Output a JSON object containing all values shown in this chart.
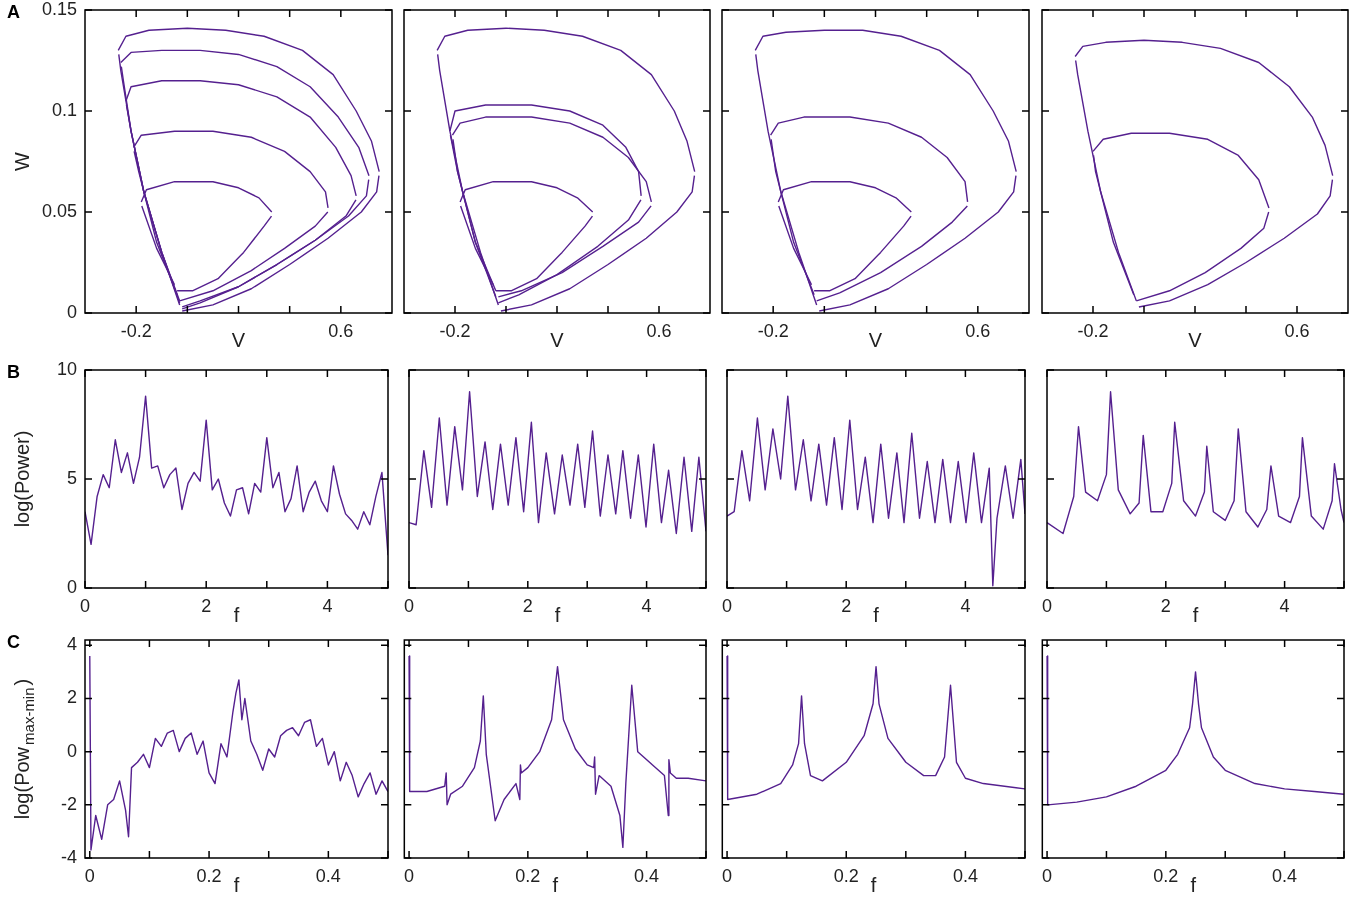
{
  "chart_data": [
    {
      "type": "line",
      "xlabel": "V",
      "ylabel": "W",
      "annotations": [
        "A"
      ],
      "marker": "none",
      "xlim": [
        -0.4,
        0.8
      ],
      "ylim": [
        0,
        0.15
      ],
      "xticks": [
        -0.2,
        {
          "value": 0,
          "label": null
        },
        {
          "value": 0.2,
          "label": null
        },
        {
          "value": 0.4,
          "label": null
        },
        0.6
      ],
      "yticks": [
        0,
        0.05,
        0.1,
        0.15
      ],
      "series": [
        {
          "color": "#55208f",
          "x": [
            -0.268,
            -0.26,
            -0.22,
            -0.17,
            -0.1,
            -0.03
          ],
          "values": [
            0.128,
            0.12,
            0.09,
            0.06,
            0.03,
            0.004
          ]
        },
        {
          "color": "#55208f",
          "x": [
            -0.27,
            -0.24,
            -0.15,
            0,
            0.15,
            0.3,
            0.45,
            0.57,
            0.66,
            0.72,
            0.75
          ],
          "values": [
            0.13,
            0.137,
            0.14,
            0.141,
            0.14,
            0.137,
            0.13,
            0.118,
            0.1,
            0.085,
            0.07
          ]
        },
        {
          "color": "#55208f",
          "x": [
            -0.02,
            0.1,
            0.25,
            0.4,
            0.55,
            0.68,
            0.74,
            0.749
          ],
          "values": [
            0.001,
            0.004,
            0.012,
            0.024,
            0.037,
            0.05,
            0.06,
            0.068
          ]
        },
        {
          "color": "#55208f",
          "x": [
            -0.258,
            -0.25,
            -0.22,
            -0.17,
            -0.1,
            -0.03
          ],
          "values": [
            0.122,
            0.115,
            0.09,
            0.06,
            0.03,
            0.005
          ]
        },
        {
          "color": "#55208f",
          "x": [
            -0.26,
            -0.22,
            -0.1,
            0.05,
            0.2,
            0.35,
            0.48,
            0.59,
            0.67,
            0.71
          ],
          "values": [
            0.124,
            0.129,
            0.13,
            0.13,
            0.128,
            0.122,
            0.112,
            0.097,
            0.082,
            0.068
          ]
        },
        {
          "color": "#55208f",
          "x": [
            -0.02,
            0.05,
            0.2,
            0.35,
            0.5,
            0.63,
            0.7,
            0.709
          ],
          "values": [
            0.002,
            0.005,
            0.013,
            0.024,
            0.036,
            0.048,
            0.058,
            0.066
          ]
        },
        {
          "color": "#55208f",
          "x": [
            -0.238,
            -0.22,
            -0.17,
            -0.1,
            -0.03
          ],
          "values": [
            0.103,
            0.09,
            0.06,
            0.03,
            0.006
          ]
        },
        {
          "color": "#55208f",
          "x": [
            -0.24,
            -0.22,
            -0.1,
            0.05,
            0.2,
            0.35,
            0.48,
            0.58,
            0.64,
            0.66
          ],
          "values": [
            0.105,
            0.112,
            0.115,
            0.115,
            0.113,
            0.107,
            0.097,
            0.082,
            0.068,
            0.058
          ]
        },
        {
          "color": "#55208f",
          "x": [
            -0.02,
            0.05,
            0.2,
            0.35,
            0.5,
            0.62,
            0.659
          ],
          "values": [
            0.003,
            0.006,
            0.013,
            0.024,
            0.036,
            0.048,
            0.056
          ]
        },
        {
          "color": "#55208f",
          "x": [
            -0.208,
            -0.19,
            -0.12,
            -0.04
          ],
          "values": [
            0.08,
            0.07,
            0.035,
            0.009
          ]
        },
        {
          "color": "#55208f",
          "x": [
            -0.21,
            -0.18,
            -0.05,
            0.1,
            0.25,
            0.38,
            0.48,
            0.54,
            0.55
          ],
          "values": [
            0.082,
            0.088,
            0.09,
            0.09,
            0.087,
            0.08,
            0.07,
            0.06,
            0.052
          ]
        },
        {
          "color": "#55208f",
          "x": [
            -0.03,
            0.1,
            0.25,
            0.38,
            0.5,
            0.549
          ],
          "values": [
            0.006,
            0.011,
            0.021,
            0.032,
            0.043,
            0.05
          ]
        },
        {
          "color": "#55208f",
          "x": [
            -0.178,
            -0.12,
            -0.05
          ],
          "values": [
            0.053,
            0.032,
            0.014
          ]
        },
        {
          "color": "#55208f",
          "x": [
            -0.18,
            -0.16,
            -0.05,
            0.1,
            0.2,
            0.28,
            0.33
          ],
          "values": [
            0.055,
            0.061,
            0.065,
            0.065,
            0.062,
            0.057,
            0.05
          ]
        },
        {
          "color": "#55208f",
          "x": [
            -0.04,
            0.02,
            0.12,
            0.22,
            0.3,
            0.329
          ],
          "values": [
            0.011,
            0.011,
            0.017,
            0.03,
            0.043,
            0.048
          ]
        }
      ]
    },
    {
      "type": "line",
      "xlabel": "V",
      "tick_labels": "x",
      "marker": "none",
      "xlim": [
        -0.4,
        0.8
      ],
      "ylim": [
        0,
        0.15
      ],
      "xticks": [
        -0.2,
        {
          "value": 0,
          "label": null
        },
        {
          "value": 0.2,
          "label": null
        },
        {
          "value": 0.4,
          "label": null
        },
        0.6
      ],
      "yticks": [
        0,
        0.05,
        0.1,
        0.15
      ],
      "series": [
        {
          "color": "#55208f",
          "x": [
            -0.268,
            -0.26,
            -0.22,
            -0.17,
            -0.1,
            -0.03
          ],
          "values": [
            0.128,
            0.12,
            0.09,
            0.06,
            0.03,
            0.004
          ]
        },
        {
          "color": "#55208f",
          "x": [
            -0.27,
            -0.24,
            -0.15,
            0,
            0.15,
            0.3,
            0.45,
            0.57,
            0.66,
            0.71,
            0.74
          ],
          "values": [
            0.13,
            0.137,
            0.14,
            0.141,
            0.14,
            0.137,
            0.13,
            0.118,
            0.1,
            0.085,
            0.07
          ]
        },
        {
          "color": "#55208f",
          "x": [
            -0.02,
            0.1,
            0.25,
            0.4,
            0.55,
            0.67,
            0.73,
            0.739
          ],
          "values": [
            0.001,
            0.004,
            0.012,
            0.024,
            0.037,
            0.05,
            0.06,
            0.068
          ]
        },
        {
          "color": "#55208f",
          "x": [
            -0.218,
            -0.19,
            -0.12,
            -0.04
          ],
          "values": [
            0.088,
            0.07,
            0.035,
            0.008
          ]
        },
        {
          "color": "#55208f",
          "x": [
            -0.22,
            -0.2,
            -0.08,
            0.1,
            0.25,
            0.38,
            0.47,
            0.52,
            0.53
          ],
          "values": [
            0.09,
            0.1,
            0.103,
            0.103,
            0.1,
            0.093,
            0.082,
            0.07,
            0.058
          ]
        },
        {
          "color": "#55208f",
          "x": [
            -0.03,
            0.05,
            0.2,
            0.36,
            0.48,
            0.529
          ],
          "values": [
            0.005,
            0.009,
            0.019,
            0.033,
            0.046,
            0.056
          ]
        },
        {
          "color": "#55208f",
          "x": [
            -0.208,
            -0.19,
            -0.12,
            -0.04
          ],
          "values": [
            0.086,
            0.07,
            0.035,
            0.011
          ]
        },
        {
          "color": "#55208f",
          "x": [
            -0.21,
            -0.18,
            -0.08,
            0.1,
            0.25,
            0.38,
            0.48,
            0.55,
            0.57
          ],
          "values": [
            0.088,
            0.094,
            0.097,
            0.097,
            0.094,
            0.087,
            0.077,
            0.065,
            0.055
          ]
        },
        {
          "color": "#55208f",
          "x": [
            -0.03,
            0.06,
            0.22,
            0.38,
            0.52,
            0.569
          ],
          "values": [
            0.008,
            0.011,
            0.02,
            0.033,
            0.045,
            0.053
          ]
        },
        {
          "color": "#55208f",
          "x": [
            -0.178,
            -0.12,
            -0.05
          ],
          "values": [
            0.053,
            0.032,
            0.014
          ]
        },
        {
          "color": "#55208f",
          "x": [
            -0.18,
            -0.16,
            -0.05,
            0.1,
            0.2,
            0.28,
            0.34
          ],
          "values": [
            0.055,
            0.061,
            0.065,
            0.065,
            0.062,
            0.057,
            0.05
          ]
        },
        {
          "color": "#55208f",
          "x": [
            -0.04,
            0.02,
            0.12,
            0.22,
            0.31,
            0.339
          ],
          "values": [
            0.011,
            0.011,
            0.017,
            0.03,
            0.043,
            0.048
          ]
        }
      ]
    },
    {
      "type": "line",
      "xlabel": "V",
      "tick_labels": "x",
      "marker": "none",
      "xlim": [
        -0.4,
        0.8
      ],
      "ylim": [
        0,
        0.15
      ],
      "xticks": [
        -0.2,
        {
          "value": 0,
          "label": null
        },
        {
          "value": 0.2,
          "label": null
        },
        {
          "value": 0.4,
          "label": null
        },
        0.6
      ],
      "yticks": [
        0,
        0.05,
        0.1,
        0.15
      ],
      "series": [
        {
          "color": "#55208f",
          "x": [
            -0.268,
            -0.26,
            -0.22,
            -0.17,
            -0.1,
            -0.03
          ],
          "values": [
            0.128,
            0.12,
            0.09,
            0.06,
            0.03,
            0.004
          ]
        },
        {
          "color": "#55208f",
          "x": [
            -0.27,
            -0.24,
            -0.15,
            0,
            0.15,
            0.3,
            0.45,
            0.57,
            0.66,
            0.72,
            0.75
          ],
          "values": [
            0.13,
            0.137,
            0.139,
            0.14,
            0.14,
            0.137,
            0.13,
            0.118,
            0.1,
            0.085,
            0.07
          ]
        },
        {
          "color": "#55208f",
          "x": [
            -0.02,
            0.1,
            0.25,
            0.4,
            0.55,
            0.68,
            0.74,
            0.749
          ],
          "values": [
            0.001,
            0.004,
            0.012,
            0.024,
            0.037,
            0.05,
            0.06,
            0.068
          ]
        },
        {
          "color": "#55208f",
          "x": [
            -0.208,
            -0.19,
            -0.12,
            -0.04
          ],
          "values": [
            0.086,
            0.07,
            0.035,
            0.009
          ]
        },
        {
          "color": "#55208f",
          "x": [
            -0.21,
            -0.18,
            -0.08,
            0.1,
            0.25,
            0.38,
            0.48,
            0.55,
            0.56
          ],
          "values": [
            0.088,
            0.094,
            0.097,
            0.097,
            0.094,
            0.087,
            0.077,
            0.065,
            0.055
          ]
        },
        {
          "color": "#55208f",
          "x": [
            -0.03,
            0.06,
            0.22,
            0.38,
            0.5,
            0.559
          ],
          "values": [
            0.006,
            0.01,
            0.02,
            0.033,
            0.045,
            0.053
          ]
        },
        {
          "color": "#55208f",
          "x": [
            -0.178,
            -0.12,
            -0.05
          ],
          "values": [
            0.053,
            0.032,
            0.014
          ]
        },
        {
          "color": "#55208f",
          "x": [
            -0.18,
            -0.16,
            -0.05,
            0.1,
            0.2,
            0.28,
            0.34
          ],
          "values": [
            0.055,
            0.061,
            0.065,
            0.065,
            0.062,
            0.057,
            0.05
          ]
        },
        {
          "color": "#55208f",
          "x": [
            -0.04,
            0.02,
            0.12,
            0.22,
            0.31,
            0.339
          ],
          "values": [
            0.011,
            0.011,
            0.017,
            0.03,
            0.043,
            0.048
          ]
        }
      ]
    },
    {
      "type": "line",
      "xlabel": "V",
      "tick_labels": "x",
      "marker": "none",
      "xlim": [
        -0.4,
        0.8
      ],
      "ylim": [
        0,
        0.15
      ],
      "xticks": [
        -0.2,
        {
          "value": 0,
          "label": null
        },
        {
          "value": 0.2,
          "label": null
        },
        {
          "value": 0.4,
          "label": null
        },
        0.6
      ],
      "yticks": [
        0,
        0.05,
        0.1,
        0.15
      ],
      "series": [
        {
          "color": "#55208f",
          "x": [
            -0.268,
            -0.26,
            -0.22,
            -0.17,
            -0.1,
            -0.03
          ],
          "values": [
            0.125,
            0.118,
            0.09,
            0.06,
            0.03,
            0.006
          ]
        },
        {
          "color": "#55208f",
          "x": [
            -0.27,
            -0.24,
            -0.15,
            0,
            0.15,
            0.3,
            0.45,
            0.57,
            0.66,
            0.71,
            0.74
          ],
          "values": [
            0.127,
            0.132,
            0.134,
            0.135,
            0.134,
            0.131,
            0.124,
            0.112,
            0.097,
            0.083,
            0.068
          ]
        },
        {
          "color": "#55208f",
          "x": [
            -0.02,
            0.1,
            0.25,
            0.4,
            0.55,
            0.68,
            0.73,
            0.739
          ],
          "values": [
            0.003,
            0.006,
            0.014,
            0.025,
            0.037,
            0.049,
            0.058,
            0.066
          ]
        },
        {
          "color": "#55208f",
          "x": [
            -0.198,
            -0.19,
            -0.12,
            -0.04
          ],
          "values": [
            0.078,
            0.07,
            0.035,
            0.009
          ]
        },
        {
          "color": "#55208f",
          "x": [
            -0.2,
            -0.16,
            -0.05,
            0.1,
            0.25,
            0.37,
            0.45,
            0.49
          ],
          "values": [
            0.08,
            0.086,
            0.089,
            0.089,
            0.086,
            0.078,
            0.066,
            0.052
          ]
        },
        {
          "color": "#55208f",
          "x": [
            -0.03,
            0.1,
            0.24,
            0.38,
            0.47,
            0.489
          ],
          "values": [
            0.006,
            0.011,
            0.02,
            0.032,
            0.042,
            0.05
          ]
        }
      ]
    },
    {
      "type": "line",
      "xlabel": "f",
      "ylabel": "log(Power)",
      "annotations": [
        "B"
      ],
      "marker": "none",
      "xlim": [
        0,
        5
      ],
      "ylim": [
        0,
        10
      ],
      "xticks": [
        0,
        {
          "value": 1,
          "label": null
        },
        2,
        {
          "value": 3,
          "label": null
        },
        4,
        {
          "value": 5,
          "label": null
        }
      ],
      "yticks": [
        0,
        5,
        10
      ],
      "series": [
        {
          "color": "#55208f",
          "x": [
            0,
            0.1,
            0.2,
            0.3,
            0.4,
            0.5,
            0.6,
            0.7,
            0.8,
            0.9,
            1,
            1.1,
            1.2,
            1.3,
            1.4,
            1.5,
            1.6,
            1.7,
            1.8,
            1.9,
            2,
            2.1,
            2.2,
            2.3,
            2.4,
            2.5,
            2.6,
            2.7,
            2.8,
            2.9,
            3,
            3.1,
            3.2,
            3.3,
            3.4,
            3.5,
            3.6,
            3.7,
            3.8,
            3.9,
            4,
            4.1,
            4.2,
            4.3,
            4.4,
            4.5,
            4.6,
            4.7,
            4.8,
            4.9,
            5
          ],
          "values": [
            3.5,
            2.0,
            4.2,
            5.2,
            4.6,
            6.8,
            5.3,
            6.2,
            4.8,
            6.0,
            8.8,
            5.5,
            5.6,
            4.6,
            5.2,
            5.5,
            3.6,
            4.8,
            5.3,
            4.9,
            7.7,
            4.5,
            5.0,
            3.9,
            3.3,
            4.5,
            4.6,
            3.4,
            4.8,
            4.4,
            6.9,
            4.6,
            5.3,
            3.5,
            4.1,
            5.6,
            3.5,
            4.4,
            4.9,
            4.0,
            3.5,
            5.6,
            4.3,
            3.4,
            3.1,
            2.7,
            3.5,
            2.9,
            4.2,
            5.3,
            1.5
          ]
        }
      ]
    },
    {
      "type": "line",
      "xlabel": "f",
      "tick_labels": "x",
      "marker": "none",
      "xlim": [
        0,
        5
      ],
      "ylim": [
        0,
        10
      ],
      "xticks": [
        0,
        {
          "value": 1,
          "label": null
        },
        2,
        {
          "value": 3,
          "label": null
        },
        4,
        {
          "value": 5,
          "label": null
        }
      ],
      "yticks": [
        0,
        5,
        10
      ],
      "series": [
        {
          "color": "#55208f",
          "x": [
            0,
            0.12,
            0.25,
            0.38,
            0.51,
            0.64,
            0.77,
            0.9,
            1.02,
            1.15,
            1.28,
            1.41,
            1.54,
            1.67,
            1.8,
            1.93,
            2.06,
            2.18,
            2.31,
            2.45,
            2.58,
            2.71,
            2.84,
            2.96,
            3.09,
            3.22,
            3.35,
            3.48,
            3.6,
            3.73,
            3.86,
            3.99,
            4.12,
            4.25,
            4.37,
            4.5,
            4.63,
            4.76,
            4.88,
            5
          ],
          "values": [
            3.0,
            2.9,
            6.3,
            3.7,
            7.8,
            3.8,
            7.4,
            4.5,
            9.0,
            4.2,
            6.7,
            3.6,
            6.6,
            3.8,
            6.9,
            3.5,
            7.6,
            3.0,
            6.2,
            3.4,
            6.1,
            3.8,
            6.6,
            3.7,
            7.2,
            3.3,
            6.1,
            3.4,
            6.3,
            3.2,
            6.1,
            2.8,
            6.6,
            3.0,
            5.4,
            2.5,
            6.0,
            2.6,
            6.0,
            2.6
          ]
        }
      ]
    },
    {
      "type": "line",
      "xlabel": "f",
      "tick_labels": "x",
      "marker": "none",
      "xlim": [
        0,
        5
      ],
      "ylim": [
        0,
        10
      ],
      "xticks": [
        0,
        {
          "value": 1,
          "label": null
        },
        2,
        {
          "value": 3,
          "label": null
        },
        4,
        {
          "value": 5,
          "label": null
        }
      ],
      "yticks": [
        0,
        5,
        10
      ],
      "series": [
        {
          "color": "#55208f",
          "x": [
            0,
            0.12,
            0.25,
            0.38,
            0.51,
            0.64,
            0.77,
            0.9,
            1.02,
            1.15,
            1.28,
            1.41,
            1.54,
            1.67,
            1.8,
            1.93,
            2.06,
            2.19,
            2.32,
            2.45,
            2.58,
            2.71,
            2.85,
            2.97,
            3.1,
            3.23,
            3.36,
            3.49,
            3.62,
            3.75,
            3.88,
            4.01,
            4.14,
            4.27,
            4.4,
            4.46,
            4.53,
            4.67,
            4.8,
            4.93,
            5
          ],
          "values": [
            3.3,
            3.5,
            6.3,
            4.0,
            7.8,
            4.5,
            7.3,
            5.0,
            8.8,
            4.5,
            6.8,
            4.0,
            6.6,
            3.8,
            6.9,
            3.6,
            7.7,
            3.6,
            6.0,
            3.0,
            6.6,
            3.2,
            6.2,
            3.0,
            7.1,
            3.2,
            5.8,
            3.0,
            5.9,
            3.0,
            5.8,
            3.0,
            6.2,
            3.0,
            5.5,
            0.1,
            3.2,
            5.6,
            3.2,
            5.9,
            3.4
          ]
        }
      ]
    },
    {
      "type": "line",
      "xlabel": "f",
      "tick_labels": "x",
      "marker": "none",
      "xlim": [
        0,
        5
      ],
      "ylim": [
        0,
        10
      ],
      "xticks": [
        0,
        {
          "value": 1,
          "label": null
        },
        2,
        {
          "value": 3,
          "label": null
        },
        4,
        {
          "value": 5,
          "label": null
        }
      ],
      "yticks": [
        0,
        5,
        10
      ],
      "series": [
        {
          "color": "#55208f",
          "x": [
            0,
            0.27,
            0.45,
            0.53,
            0.65,
            0.85,
            1.0,
            1.07,
            1.2,
            1.4,
            1.55,
            1.62,
            1.75,
            1.95,
            2.1,
            2.15,
            2.3,
            2.5,
            2.65,
            2.69,
            2.8,
            3.0,
            3.15,
            3.22,
            3.35,
            3.55,
            3.7,
            3.77,
            3.9,
            4.1,
            4.25,
            4.3,
            4.45,
            4.65,
            4.8,
            4.84,
            4.95,
            5
          ],
          "values": [
            3.0,
            2.5,
            4.2,
            7.4,
            4.4,
            4.0,
            5.2,
            9.0,
            4.5,
            3.4,
            3.9,
            7.0,
            3.5,
            3.5,
            4.8,
            7.6,
            4.0,
            3.3,
            4.4,
            6.5,
            3.5,
            3.1,
            4.0,
            7.3,
            3.5,
            2.8,
            3.6,
            5.6,
            3.3,
            3.0,
            4.2,
            6.9,
            3.3,
            2.7,
            4.0,
            5.7,
            3.6,
            3.0
          ]
        }
      ]
    },
    {
      "type": "line",
      "xlabel": "f",
      "ylabel": "log(Pow$_{max-min}$)",
      "annotations": [
        "C"
      ],
      "marker": "none",
      "xlim": [
        -0.008,
        0.5
      ],
      "ylim": [
        -4,
        4.2
      ],
      "xticks": [
        0,
        {
          "value": 0.1,
          "label": null
        },
        0.2,
        {
          "value": 0.3,
          "label": null
        },
        0.4,
        {
          "value": 0.5,
          "label": null
        }
      ],
      "yticks": [
        -4,
        -2,
        0,
        2,
        4
      ],
      "series": [
        {
          "color": "#55208f",
          "x": [
            0,
            0.002,
            0.01,
            0.02,
            0.03,
            0.04,
            0.05,
            0.06,
            0.065,
            0.07,
            0.08,
            0.09,
            0.1,
            0.11,
            0.12,
            0.13,
            0.14,
            0.15,
            0.16,
            0.17,
            0.18,
            0.19,
            0.2,
            0.21,
            0.22,
            0.23,
            0.24,
            0.245,
            0.25,
            0.255,
            0.26,
            0.27,
            0.28,
            0.29,
            0.3,
            0.31,
            0.32,
            0.33,
            0.34,
            0.35,
            0.36,
            0.37,
            0.38,
            0.39,
            0.4,
            0.41,
            0.42,
            0.43,
            0.44,
            0.45,
            0.46,
            0.47,
            0.48,
            0.49,
            0.5
          ],
          "values": [
            3.6,
            -3.7,
            -2.4,
            -3.3,
            -2.0,
            -1.8,
            -1.1,
            -2.2,
            -3.2,
            -0.6,
            -0.4,
            -0.1,
            -0.6,
            0.5,
            0.2,
            0.7,
            0.8,
            0.0,
            0.5,
            0.7,
            -0.1,
            0.4,
            -0.8,
            -1.2,
            0.3,
            -0.2,
            1.5,
            2.2,
            2.7,
            1.2,
            2.0,
            0.4,
            -0.1,
            -0.7,
            0.1,
            -0.2,
            0.6,
            0.8,
            0.9,
            0.6,
            1.1,
            1.2,
            0.2,
            0.5,
            -0.5,
            0.0,
            -1.1,
            -0.4,
            -0.9,
            -1.7,
            -1.2,
            -0.8,
            -1.6,
            -1.1,
            -1.5
          ]
        }
      ]
    },
    {
      "type": "line",
      "xlabel": "f",
      "tick_labels": "x",
      "marker": "none",
      "xlim": [
        -0.008,
        0.5
      ],
      "ylim": [
        -4,
        4.2
      ],
      "xticks": [
        0,
        {
          "value": 0.1,
          "label": null
        },
        0.2,
        {
          "value": 0.3,
          "label": null
        },
        0.4,
        {
          "value": 0.5,
          "label": null
        }
      ],
      "yticks": [
        -4,
        -2,
        0,
        2,
        4
      ],
      "series": [
        {
          "color": "#55208f",
          "x": [
            0,
            0.001,
            0.03,
            0.06,
            0.0625,
            0.064,
            0.07,
            0.09,
            0.11,
            0.12,
            0.125,
            0.13,
            0.145,
            0.16,
            0.18,
            0.1865,
            0.1875,
            0.189,
            0.2,
            0.22,
            0.24,
            0.25,
            0.26,
            0.28,
            0.3,
            0.311,
            0.3125,
            0.314,
            0.32,
            0.34,
            0.355,
            0.36,
            0.365,
            0.375,
            0.385,
            0.41,
            0.43,
            0.4365,
            0.4375,
            0.44,
            0.45,
            0.47,
            0.5
          ],
          "values": [
            3.6,
            -1.5,
            -1.5,
            -1.3,
            -0.8,
            -2.0,
            -1.6,
            -1.3,
            -0.6,
            0.4,
            2.1,
            -0.1,
            -2.6,
            -1.8,
            -1.2,
            -1.8,
            -0.5,
            -0.8,
            -0.6,
            0.0,
            1.2,
            3.2,
            1.2,
            0.1,
            -0.5,
            -0.6,
            -0.2,
            -1.6,
            -0.9,
            -1.3,
            -2.4,
            -3.6,
            -1.2,
            2.5,
            0.0,
            -0.5,
            -0.9,
            -2.4,
            -0.3,
            -0.8,
            -1.0,
            -1.0,
            -1.1
          ]
        }
      ]
    },
    {
      "type": "line",
      "xlabel": "f",
      "tick_labels": "x",
      "marker": "none",
      "xlim": [
        -0.008,
        0.5
      ],
      "ylim": [
        -4,
        4.2
      ],
      "xticks": [
        0,
        {
          "value": 0.1,
          "label": null
        },
        0.2,
        {
          "value": 0.3,
          "label": null
        },
        0.4,
        {
          "value": 0.5,
          "label": null
        }
      ],
      "yticks": [
        -4,
        -2,
        0,
        2,
        4
      ],
      "series": [
        {
          "color": "#55208f",
          "x": [
            0,
            0.001,
            0.05,
            0.09,
            0.11,
            0.12,
            0.125,
            0.13,
            0.14,
            0.16,
            0.2,
            0.23,
            0.245,
            0.25,
            0.255,
            0.27,
            0.3,
            0.33,
            0.35,
            0.365,
            0.375,
            0.385,
            0.4,
            0.43,
            0.5
          ],
          "values": [
            3.6,
            -1.8,
            -1.6,
            -1.2,
            -0.5,
            0.3,
            2.1,
            0.3,
            -0.9,
            -1.1,
            -0.4,
            0.6,
            1.8,
            3.2,
            1.8,
            0.5,
            -0.4,
            -0.9,
            -0.9,
            -0.2,
            2.5,
            -0.4,
            -1.0,
            -1.2,
            -1.4
          ]
        }
      ]
    },
    {
      "type": "line",
      "xlabel": "f",
      "tick_labels": "x",
      "marker": "none",
      "xlim": [
        -0.008,
        0.5
      ],
      "ylim": [
        -4,
        4.2
      ],
      "xticks": [
        0,
        {
          "value": 0.1,
          "label": null
        },
        0.2,
        {
          "value": 0.3,
          "label": null
        },
        0.4,
        {
          "value": 0.5,
          "label": null
        }
      ],
      "yticks": [
        -4,
        -2,
        0,
        2,
        4
      ],
      "series": [
        {
          "color": "#55208f",
          "x": [
            0,
            0.001,
            0.05,
            0.1,
            0.15,
            0.2,
            0.22,
            0.24,
            0.245,
            0.25,
            0.255,
            0.26,
            0.28,
            0.3,
            0.35,
            0.4,
            0.45,
            0.5
          ],
          "values": [
            3.6,
            -2.0,
            -1.9,
            -1.7,
            -1.3,
            -0.7,
            -0.1,
            0.9,
            1.8,
            3.0,
            1.8,
            0.9,
            -0.2,
            -0.7,
            -1.2,
            -1.4,
            -1.5,
            -1.6
          ]
        }
      ]
    }
  ]
}
